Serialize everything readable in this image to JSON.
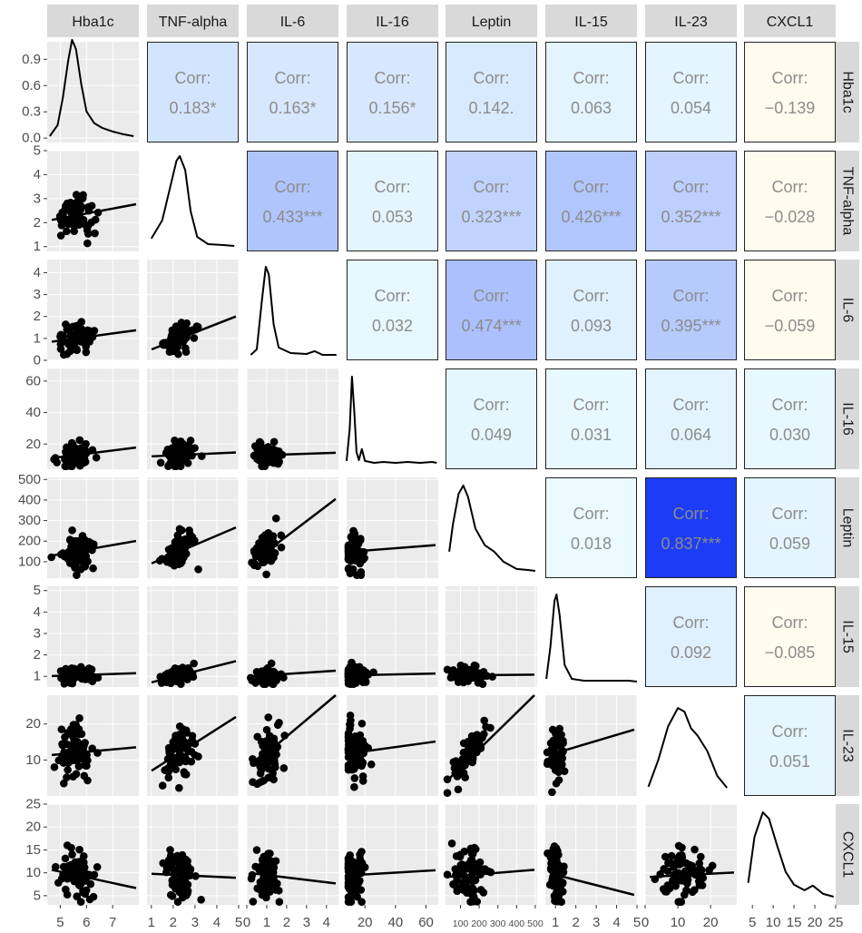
{
  "chart_data": {
    "type": "scatter-matrix",
    "variables": [
      "Hba1c",
      "TNF-alpha",
      "IL-6",
      "IL-16",
      "Leptin",
      "IL-15",
      "IL-23",
      "CXCL1"
    ],
    "corr_label": "Corr:",
    "correlations": [
      {
        "row": 0,
        "col": 1,
        "text": "0.183*",
        "value": 0.183
      },
      {
        "row": 0,
        "col": 2,
        "text": "0.163*",
        "value": 0.163
      },
      {
        "row": 0,
        "col": 3,
        "text": "0.156*",
        "value": 0.156
      },
      {
        "row": 0,
        "col": 4,
        "text": "0.142.",
        "value": 0.142
      },
      {
        "row": 0,
        "col": 5,
        "text": "0.063",
        "value": 0.063
      },
      {
        "row": 0,
        "col": 6,
        "text": "0.054",
        "value": 0.054
      },
      {
        "row": 0,
        "col": 7,
        "text": "−0.139",
        "value": -0.139
      },
      {
        "row": 1,
        "col": 2,
        "text": "0.433***",
        "value": 0.433
      },
      {
        "row": 1,
        "col": 3,
        "text": "0.053",
        "value": 0.053
      },
      {
        "row": 1,
        "col": 4,
        "text": "0.323***",
        "value": 0.323
      },
      {
        "row": 1,
        "col": 5,
        "text": "0.426***",
        "value": 0.426
      },
      {
        "row": 1,
        "col": 6,
        "text": "0.352***",
        "value": 0.352
      },
      {
        "row": 1,
        "col": 7,
        "text": "−0.028",
        "value": -0.028
      },
      {
        "row": 2,
        "col": 3,
        "text": "0.032",
        "value": 0.032
      },
      {
        "row": 2,
        "col": 4,
        "text": "0.474***",
        "value": 0.474
      },
      {
        "row": 2,
        "col": 5,
        "text": "0.093",
        "value": 0.093
      },
      {
        "row": 2,
        "col": 6,
        "text": "0.395***",
        "value": 0.395
      },
      {
        "row": 2,
        "col": 7,
        "text": "−0.059",
        "value": -0.059
      },
      {
        "row": 3,
        "col": 4,
        "text": "0.049",
        "value": 0.049
      },
      {
        "row": 3,
        "col": 5,
        "text": "0.031",
        "value": 0.031
      },
      {
        "row": 3,
        "col": 6,
        "text": "0.064",
        "value": 0.064
      },
      {
        "row": 3,
        "col": 7,
        "text": "0.030",
        "value": 0.03
      },
      {
        "row": 4,
        "col": 5,
        "text": "0.018",
        "value": 0.018
      },
      {
        "row": 4,
        "col": 6,
        "text": "0.837***",
        "value": 0.837
      },
      {
        "row": 4,
        "col": 7,
        "text": "0.059",
        "value": 0.059
      },
      {
        "row": 5,
        "col": 6,
        "text": "0.092",
        "value": 0.092
      },
      {
        "row": 5,
        "col": 7,
        "text": "−0.085",
        "value": -0.085
      },
      {
        "row": 6,
        "col": 7,
        "text": "0.051",
        "value": 0.051
      }
    ],
    "x_axes": [
      {
        "range": [
          4.5,
          8.0
        ],
        "ticks": [
          5,
          6,
          7
        ],
        "tick_labels": [
          "5",
          "6",
          "7"
        ]
      },
      {
        "range": [
          0.8,
          5.0
        ],
        "ticks": [
          1,
          2,
          3,
          4,
          5
        ],
        "tick_labels": [
          "1",
          "2",
          "3",
          "4",
          "5"
        ]
      },
      {
        "range": [
          0.0,
          4.6
        ],
        "ticks": [
          0,
          1,
          2,
          3,
          4
        ],
        "tick_labels": [
          "0",
          "1",
          "2",
          "3",
          "4"
        ]
      },
      {
        "range": [
          8,
          68
        ],
        "ticks": [
          20,
          40,
          60
        ],
        "tick_labels": [
          "20",
          "40",
          "60"
        ]
      },
      {
        "range": [
          20,
          510
        ],
        "ticks": [
          100,
          200,
          300,
          400,
          500
        ],
        "tick_labels": [
          "100",
          "200",
          "300",
          "400",
          "500"
        ]
      },
      {
        "range": [
          0.5,
          5.0
        ],
        "ticks": [
          1,
          2,
          3,
          4,
          5
        ],
        "tick_labels": [
          "1",
          "2",
          "3",
          "4",
          "5"
        ]
      },
      {
        "range": [
          0,
          28
        ],
        "ticks": [
          0,
          10,
          20
        ],
        "tick_labels": [
          "0",
          "10",
          "20"
        ]
      },
      {
        "range": [
          3,
          25
        ],
        "ticks": [
          5,
          10,
          15,
          20,
          25
        ],
        "tick_labels": [
          "5",
          "10",
          "15",
          "20",
          "25"
        ]
      }
    ],
    "y_axes": [
      {
        "range": [
          -0.05,
          1.1
        ],
        "ticks": [
          0.0,
          0.3,
          0.6,
          0.9
        ],
        "tick_labels": [
          "0.0",
          "0.3",
          "0.6",
          "0.9"
        ]
      },
      {
        "range": [
          0.8,
          5.0
        ],
        "ticks": [
          1,
          2,
          3,
          4,
          5
        ],
        "tick_labels": [
          "1",
          "2",
          "3",
          "4",
          "5"
        ]
      },
      {
        "range": [
          0.0,
          4.6
        ],
        "ticks": [
          0,
          1,
          2,
          3,
          4
        ],
        "tick_labels": [
          "0",
          "1",
          "2",
          "3",
          "4"
        ]
      },
      {
        "range": [
          4,
          68
        ],
        "ticks": [
          20,
          40,
          60
        ],
        "tick_labels": [
          "20",
          "40",
          "60"
        ]
      },
      {
        "range": [
          20,
          510
        ],
        "ticks": [
          100,
          200,
          300,
          400,
          500
        ],
        "tick_labels": [
          "100",
          "200",
          "300",
          "400",
          "500"
        ]
      },
      {
        "range": [
          0.5,
          5.2
        ],
        "ticks": [
          1,
          2,
          3,
          4,
          5
        ],
        "tick_labels": [
          "1",
          "2",
          "3",
          "4",
          "5"
        ]
      },
      {
        "range": [
          0,
          28
        ],
        "ticks": [
          10,
          20
        ],
        "tick_labels": [
          "10",
          "20"
        ]
      },
      {
        "range": [
          3,
          25
        ],
        "ticks": [
          5,
          10,
          15,
          20,
          25
        ],
        "tick_labels": [
          "5",
          "10",
          "15",
          "20",
          "25"
        ]
      }
    ],
    "density_curves": [
      [
        [
          4.6,
          0.03
        ],
        [
          4.9,
          0.15
        ],
        [
          5.1,
          0.45
        ],
        [
          5.3,
          0.85
        ],
        [
          5.45,
          1.08
        ],
        [
          5.6,
          0.98
        ],
        [
          5.8,
          0.6
        ],
        [
          6.0,
          0.3
        ],
        [
          6.3,
          0.17
        ],
        [
          6.6,
          0.12
        ],
        [
          7.0,
          0.08
        ],
        [
          7.4,
          0.05
        ],
        [
          7.8,
          0.03
        ]
      ],
      [
        [
          1.0,
          0.1
        ],
        [
          1.5,
          0.3
        ],
        [
          1.9,
          0.7
        ],
        [
          2.15,
          0.95
        ],
        [
          2.3,
          1.0
        ],
        [
          2.55,
          0.85
        ],
        [
          2.8,
          0.4
        ],
        [
          3.1,
          0.12
        ],
        [
          3.6,
          0.04
        ],
        [
          4.3,
          0.03
        ],
        [
          4.8,
          0.02
        ]
      ],
      [
        [
          0.2,
          0.02
        ],
        [
          0.5,
          0.08
        ],
        [
          0.75,
          0.6
        ],
        [
          0.95,
          0.98
        ],
        [
          1.1,
          0.9
        ],
        [
          1.35,
          0.35
        ],
        [
          1.6,
          0.1
        ],
        [
          2.2,
          0.04
        ],
        [
          3.0,
          0.03
        ],
        [
          3.4,
          0.06
        ],
        [
          3.8,
          0.02
        ],
        [
          4.5,
          0.02
        ]
      ],
      [
        [
          8,
          0.05
        ],
        [
          10,
          0.4
        ],
        [
          11.5,
          0.97
        ],
        [
          13,
          0.6
        ],
        [
          14.5,
          0.15
        ],
        [
          16,
          0.06
        ],
        [
          18,
          0.18
        ],
        [
          20,
          0.05
        ],
        [
          26,
          0.03
        ],
        [
          32,
          0.04
        ],
        [
          40,
          0.03
        ],
        [
          48,
          0.04
        ],
        [
          56,
          0.03
        ],
        [
          64,
          0.04
        ],
        [
          67,
          0.03
        ]
      ],
      [
        [
          40,
          0.25
        ],
        [
          60,
          0.55
        ],
        [
          90,
          0.88
        ],
        [
          115,
          0.97
        ],
        [
          140,
          0.85
        ],
        [
          180,
          0.5
        ],
        [
          230,
          0.32
        ],
        [
          280,
          0.25
        ],
        [
          330,
          0.14
        ],
        [
          400,
          0.06
        ],
        [
          460,
          0.05
        ],
        [
          500,
          0.04
        ]
      ],
      [
        [
          0.55,
          0.05
        ],
        [
          0.75,
          0.4
        ],
        [
          0.95,
          0.9
        ],
        [
          1.05,
          0.97
        ],
        [
          1.2,
          0.75
        ],
        [
          1.45,
          0.2
        ],
        [
          1.8,
          0.05
        ],
        [
          2.4,
          0.03
        ],
        [
          3.5,
          0.03
        ],
        [
          4.6,
          0.03
        ],
        [
          5.0,
          0.02
        ]
      ],
      [
        [
          1,
          0.06
        ],
        [
          4,
          0.35
        ],
        [
          7,
          0.72
        ],
        [
          10,
          0.92
        ],
        [
          12,
          0.88
        ],
        [
          14,
          0.7
        ],
        [
          16,
          0.62
        ],
        [
          19,
          0.45
        ],
        [
          22,
          0.18
        ],
        [
          25,
          0.05
        ]
      ],
      [
        [
          4,
          0.2
        ],
        [
          5.5,
          0.7
        ],
        [
          7.5,
          0.97
        ],
        [
          9,
          0.9
        ],
        [
          11,
          0.6
        ],
        [
          13,
          0.32
        ],
        [
          15,
          0.18
        ],
        [
          17.5,
          0.12
        ],
        [
          19.5,
          0.17
        ],
        [
          22,
          0.08
        ],
        [
          24.5,
          0.05
        ]
      ]
    ]
  }
}
